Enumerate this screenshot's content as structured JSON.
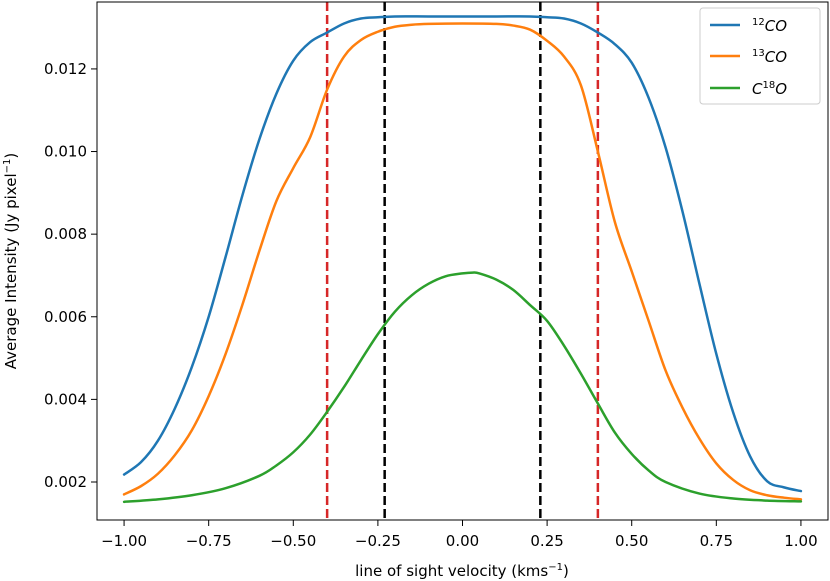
{
  "chart_data": {
    "type": "line",
    "xlabel": "line of sight velocity (kms",
    "xlabel_sup": "−1",
    "xlabel_close": ")",
    "ylabel": "Average Intensity (Jy pixel",
    "ylabel_sup": "−1",
    "ylabel_close": ")",
    "xlim": [
      -1.08,
      1.08
    ],
    "ylim": [
      0.00108,
      0.01362
    ],
    "xticks": [
      -1.0,
      -0.75,
      -0.5,
      -0.25,
      0.0,
      0.25,
      0.5,
      0.75,
      1.0
    ],
    "xtick_labels": [
      "−1.00",
      "−0.75",
      "−0.50",
      "−0.25",
      "0.00",
      "0.25",
      "0.50",
      "0.75",
      "1.00"
    ],
    "yticks": [
      0.002,
      0.004,
      0.006,
      0.008,
      0.01,
      0.012
    ],
    "ytick_labels": [
      "0.002",
      "0.004",
      "0.006",
      "0.008",
      "0.010",
      "0.012"
    ],
    "legend_position": "upper-right",
    "series": [
      {
        "name": "12CO",
        "label_sup": "12",
        "label_main": "CO",
        "color": "#1f77b4",
        "x": [
          -1.0,
          -0.95,
          -0.9,
          -0.85,
          -0.8,
          -0.75,
          -0.7,
          -0.65,
          -0.6,
          -0.55,
          -0.5,
          -0.45,
          -0.4,
          -0.35,
          -0.3,
          -0.25,
          -0.2,
          -0.1,
          0.0,
          0.1,
          0.2,
          0.25,
          0.3,
          0.35,
          0.4,
          0.45,
          0.5,
          0.55,
          0.6,
          0.65,
          0.7,
          0.75,
          0.8,
          0.85,
          0.9,
          0.95,
          1.0
        ],
        "y": [
          0.00218,
          0.00248,
          0.003,
          0.00378,
          0.00478,
          0.006,
          0.00745,
          0.00895,
          0.0103,
          0.0114,
          0.0122,
          0.01265,
          0.01288,
          0.0131,
          0.01322,
          0.01325,
          0.01327,
          0.01327,
          0.01327,
          0.01327,
          0.01327,
          0.01325,
          0.01322,
          0.0131,
          0.01288,
          0.0126,
          0.01215,
          0.0113,
          0.0101,
          0.00855,
          0.0068,
          0.0051,
          0.00368,
          0.00262,
          0.00202,
          0.00187,
          0.00178
        ]
      },
      {
        "name": "13CO",
        "label_sup": "13",
        "label_main": "CO",
        "color": "#ff7f0e",
        "x": [
          -1.0,
          -0.95,
          -0.9,
          -0.85,
          -0.8,
          -0.75,
          -0.7,
          -0.65,
          -0.6,
          -0.55,
          -0.5,
          -0.45,
          -0.4,
          -0.35,
          -0.3,
          -0.25,
          -0.2,
          -0.15,
          -0.1,
          0.0,
          0.1,
          0.15,
          0.2,
          0.25,
          0.3,
          0.35,
          0.4,
          0.45,
          0.5,
          0.55,
          0.6,
          0.65,
          0.7,
          0.75,
          0.8,
          0.85,
          0.9,
          0.95,
          1.0
        ],
        "y": [
          0.0017,
          0.0019,
          0.0022,
          0.00265,
          0.00325,
          0.00408,
          0.0051,
          0.0063,
          0.0076,
          0.0088,
          0.0096,
          0.01035,
          0.0115,
          0.0123,
          0.0127,
          0.0129,
          0.01302,
          0.01307,
          0.01309,
          0.0131,
          0.01309,
          0.01305,
          0.01295,
          0.01268,
          0.0123,
          0.0116,
          0.01,
          0.0083,
          0.0071,
          0.0059,
          0.0047,
          0.0038,
          0.00305,
          0.00245,
          0.00205,
          0.0018,
          0.00168,
          0.00162,
          0.00158
        ]
      },
      {
        "name": "C18O",
        "label_main": "C",
        "label_sup": "18",
        "label_tail": "O",
        "color": "#2ca02c",
        "x": [
          -1.0,
          -0.9,
          -0.8,
          -0.7,
          -0.6,
          -0.55,
          -0.5,
          -0.45,
          -0.4,
          -0.35,
          -0.3,
          -0.25,
          -0.2,
          -0.15,
          -0.1,
          -0.05,
          0.0,
          0.03,
          0.05,
          0.1,
          0.15,
          0.2,
          0.25,
          0.3,
          0.35,
          0.4,
          0.45,
          0.5,
          0.55,
          0.6,
          0.7,
          0.8,
          0.9,
          1.0
        ],
        "y": [
          0.00152,
          0.00158,
          0.00168,
          0.00185,
          0.00215,
          0.0024,
          0.00272,
          0.00315,
          0.0037,
          0.0043,
          0.00495,
          0.00558,
          0.00612,
          0.00652,
          0.0068,
          0.00698,
          0.00705,
          0.00707,
          0.00705,
          0.0069,
          0.00665,
          0.00628,
          0.0059,
          0.0053,
          0.00462,
          0.0039,
          0.0032,
          0.00268,
          0.00228,
          0.002,
          0.00172,
          0.0016,
          0.00155,
          0.00153
        ]
      }
    ],
    "vlines": [
      {
        "x": -0.4,
        "color": "#d62728"
      },
      {
        "x": -0.23,
        "color": "#000000"
      },
      {
        "x": 0.23,
        "color": "#000000"
      },
      {
        "x": 0.4,
        "color": "#d62728"
      }
    ]
  }
}
